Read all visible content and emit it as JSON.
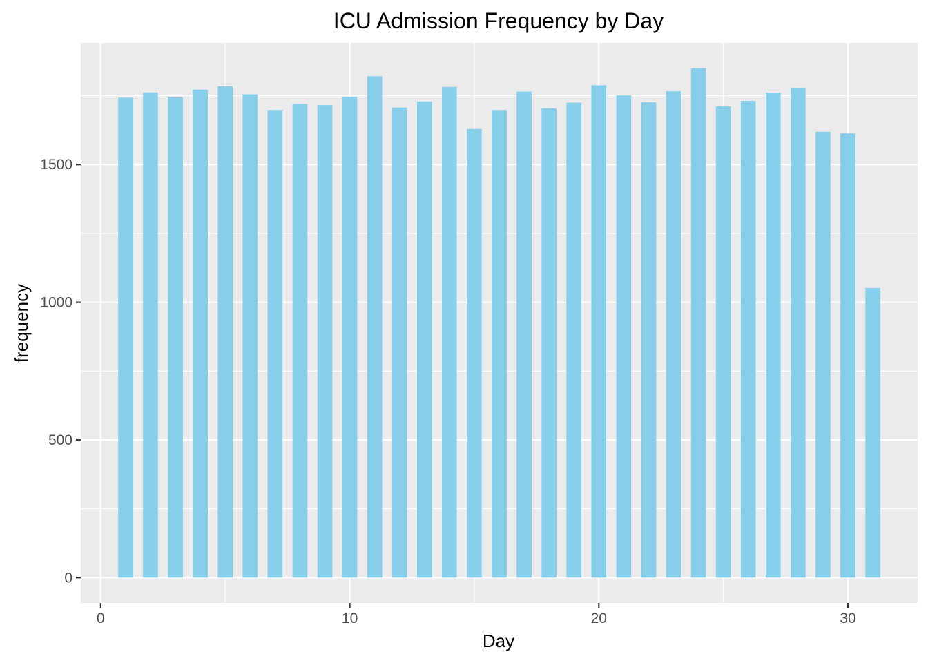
{
  "chart_data": {
    "type": "bar",
    "title": "ICU Admission Frequency by Day",
    "xlabel": "Day",
    "ylabel": "frequency",
    "x": [
      1,
      2,
      3,
      4,
      5,
      6,
      7,
      8,
      9,
      10,
      11,
      12,
      13,
      14,
      15,
      16,
      17,
      18,
      19,
      20,
      21,
      22,
      23,
      24,
      25,
      26,
      27,
      28,
      29,
      30,
      31
    ],
    "values": [
      1743,
      1762,
      1744,
      1772,
      1784,
      1755,
      1698,
      1720,
      1716,
      1746,
      1821,
      1707,
      1729,
      1782,
      1629,
      1698,
      1765,
      1704,
      1725,
      1788,
      1751,
      1726,
      1766,
      1850,
      1711,
      1731,
      1761,
      1777,
      1619,
      1613,
      1052
    ],
    "xlim": [
      -0.8,
      32.8
    ],
    "ylim": [
      -92,
      1942
    ],
    "x_ticks": [
      0,
      10,
      20,
      30
    ],
    "x_tick_labels": [
      "0",
      "10",
      "20",
      "30"
    ],
    "y_ticks": [
      0,
      500,
      1000,
      1500
    ],
    "y_tick_labels": [
      "0",
      "500",
      "1000",
      "1500"
    ],
    "bar_color": "#87CEEB",
    "panel_background": "#EBEBEB",
    "grid_color": "#FFFFFF",
    "grid": true,
    "legend": "none"
  }
}
